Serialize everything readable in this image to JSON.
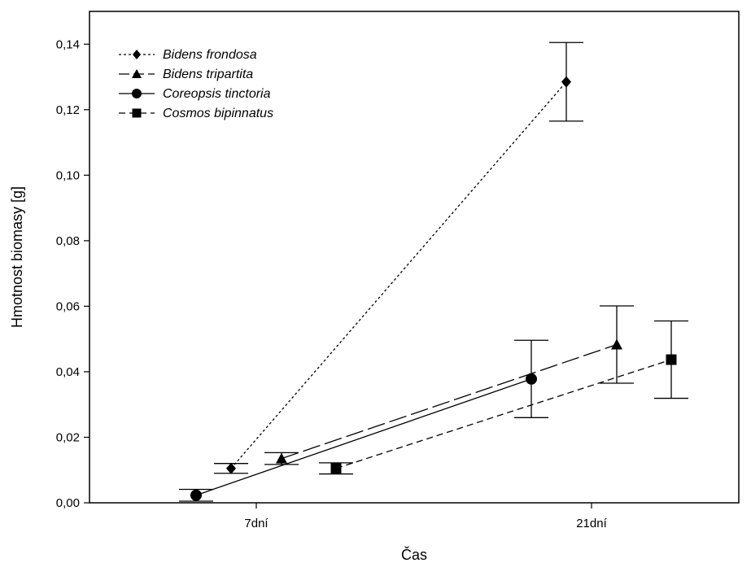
{
  "chart_data": {
    "type": "line",
    "xlabel": "Čas",
    "ylabel": "Hmotnost biomasy [g]",
    "categories": [
      "7dní",
      "21dní"
    ],
    "ylim": [
      0,
      0.15
    ],
    "y_ticks": [
      "0,00",
      "0,02",
      "0,04",
      "0,06",
      "0,08",
      "0,10",
      "0,12",
      "0,14"
    ],
    "legend_position": "top-left",
    "grid": false,
    "series": [
      {
        "name": "Bidens frondosa",
        "marker": "diamond",
        "line_style": "dotted",
        "values": [
          0.0105,
          0.1285
        ],
        "error": [
          0.0015,
          0.012
        ]
      },
      {
        "name": "Bidens tripartita",
        "marker": "triangle",
        "line_style": "long-dash",
        "values": [
          0.0135,
          0.0483
        ],
        "error": [
          0.0018,
          0.0118
        ]
      },
      {
        "name": "Coreopsis tinctoria",
        "marker": "circle",
        "line_style": "solid",
        "values": [
          0.0023,
          0.0378
        ],
        "error": [
          0.0018,
          0.0118
        ]
      },
      {
        "name": "Cosmos bipinnatus",
        "marker": "square",
        "line_style": "short-dash",
        "values": [
          0.0105,
          0.0437
        ],
        "error": [
          0.0017,
          0.0118
        ]
      }
    ]
  }
}
